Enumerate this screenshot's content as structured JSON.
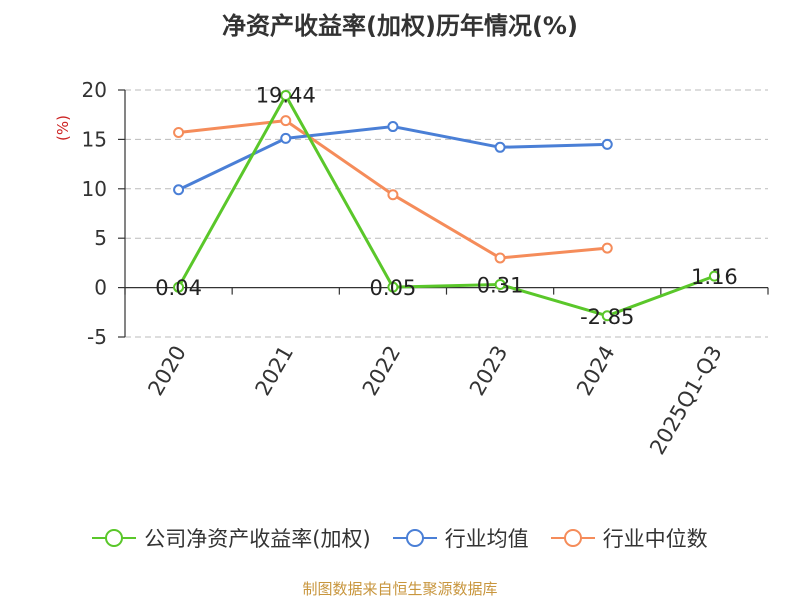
{
  "chart_data": {
    "type": "line",
    "title": "净资产收益率(加权)历年情况(%)",
    "ylabel": "(%)",
    "xlabel": "",
    "categories": [
      "2020",
      "2021",
      "2022",
      "2023",
      "2024",
      "2025Q1-Q3"
    ],
    "ylim": [
      -5,
      20
    ],
    "yticks": [
      -5,
      0,
      5,
      10,
      15,
      20
    ],
    "grid": true,
    "legend_position": "bottom",
    "series": [
      {
        "name": "公司净资产收益率(加权)",
        "color": "#5ac72a",
        "values": [
          0.04,
          19.44,
          0.05,
          0.31,
          -2.85,
          1.16
        ],
        "labels": [
          "0.04",
          "19.44",
          "0.05",
          "0.31",
          "-2.85",
          "1.16"
        ]
      },
      {
        "name": "行业均值",
        "color": "#4a7fd6",
        "values": [
          9.9,
          15.1,
          16.3,
          14.2,
          14.5,
          null
        ]
      },
      {
        "name": "行业中位数",
        "color": "#f58c5a",
        "values": [
          15.7,
          16.9,
          9.4,
          3.0,
          4.0,
          null
        ]
      }
    ]
  },
  "footer": {
    "source": "制图数据来自恒生聚源数据库"
  }
}
